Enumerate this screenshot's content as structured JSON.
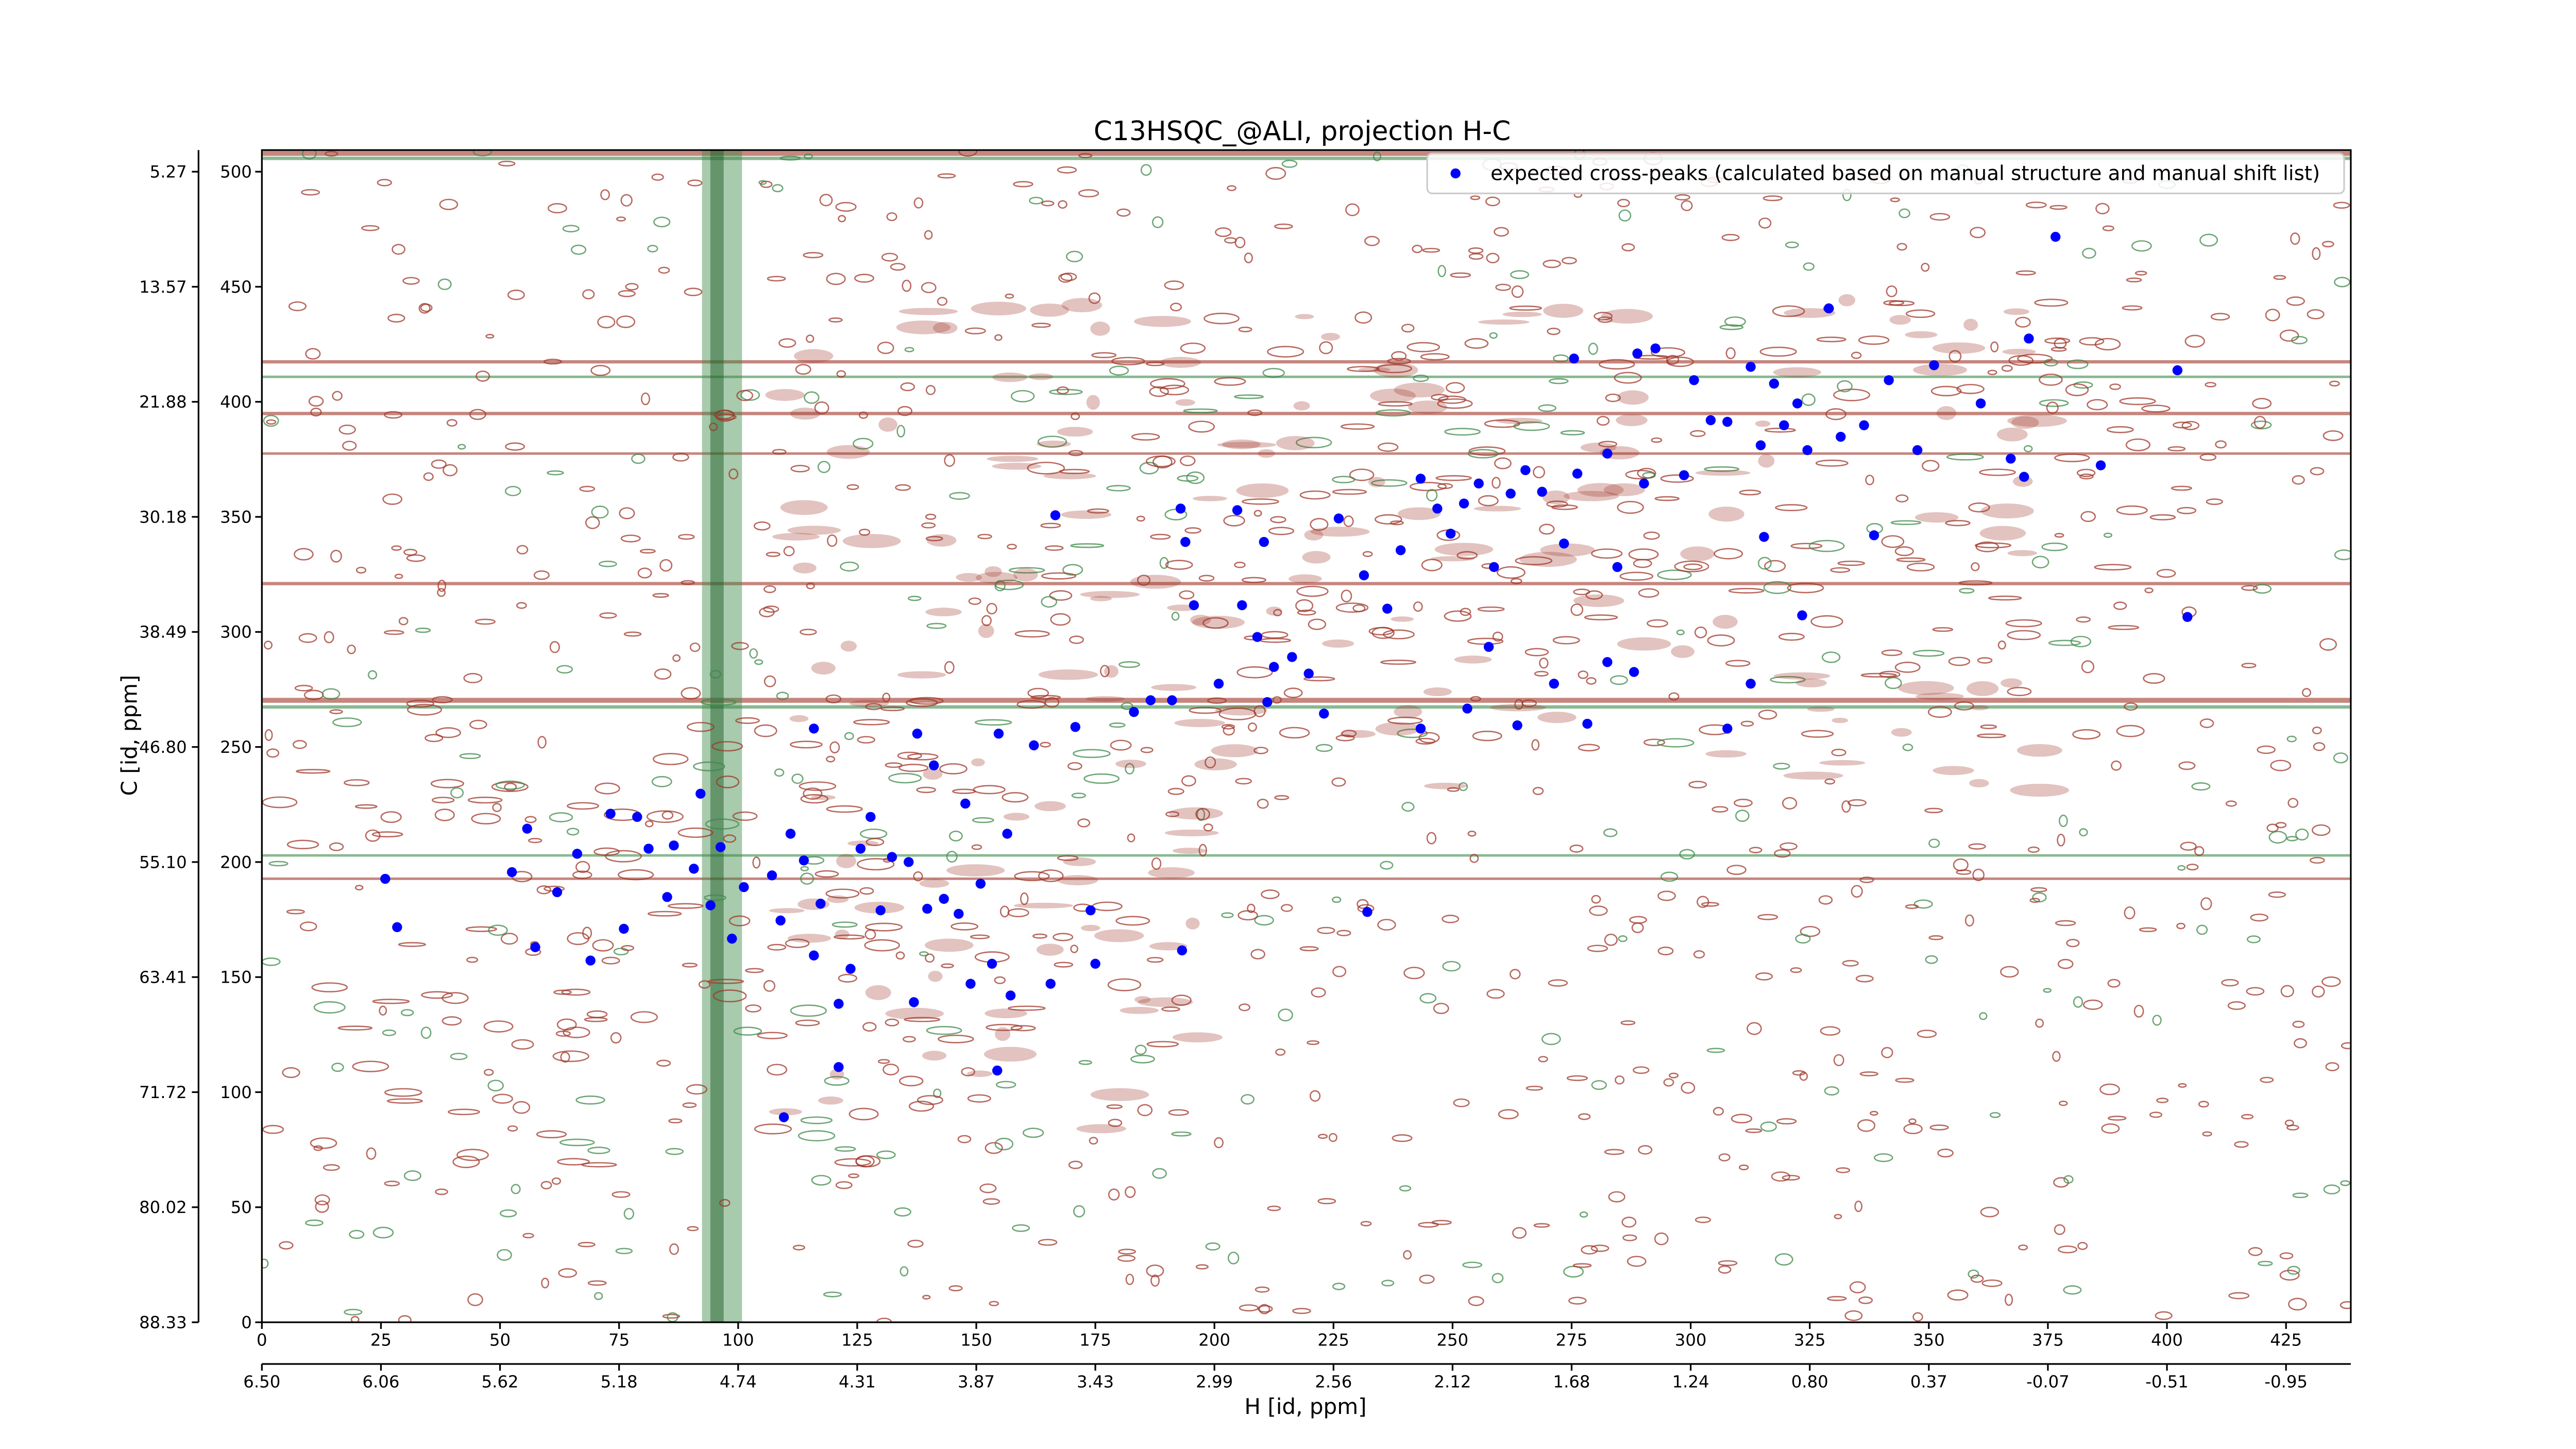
{
  "chart_data": {
    "type": "scatter",
    "title": "C13HSQC_@ALI, projection H-C",
    "x_label": "H [id, ppm]",
    "y_label": "C [id, ppm]",
    "xlim": [
      0,
      438.6
    ],
    "ylim": [
      0,
      509.4
    ],
    "xticks": [
      0,
      25,
      50,
      75,
      100,
      125,
      150,
      175,
      200,
      225,
      250,
      275,
      300,
      325,
      350,
      375,
      400,
      425
    ],
    "yticks": [
      0,
      50,
      100,
      150,
      200,
      250,
      300,
      350,
      400,
      450,
      500
    ],
    "x2lim": [
      0,
      438.6
    ],
    "x2ticks": [
      {
        "value": 0,
        "label": "6.50"
      },
      {
        "value": 25,
        "label": "6.06"
      },
      {
        "value": 50,
        "label": "5.62"
      },
      {
        "value": 75,
        "label": "5.18"
      },
      {
        "value": 100,
        "label": "4.74"
      },
      {
        "value": 125,
        "label": "4.31"
      },
      {
        "value": 150,
        "label": "3.87"
      },
      {
        "value": 175,
        "label": "3.43"
      },
      {
        "value": 200,
        "label": "2.99"
      },
      {
        "value": 225,
        "label": "2.56"
      },
      {
        "value": 250,
        "label": "2.12"
      },
      {
        "value": 275,
        "label": "1.68"
      },
      {
        "value": 300,
        "label": "1.24"
      },
      {
        "value": 325,
        "label": "0.80"
      },
      {
        "value": 350,
        "label": "0.37"
      },
      {
        "value": 375,
        "label": "-0.07"
      },
      {
        "value": 400,
        "label": "-0.51"
      },
      {
        "value": 425,
        "label": "-0.95"
      }
    ],
    "y2lim": [
      0,
      509.4
    ],
    "y2ticks": [
      {
        "value": 500,
        "label": "5.27"
      },
      {
        "value": 450,
        "label": "13.57"
      },
      {
        "value": 400,
        "label": "21.88"
      },
      {
        "value": 350,
        "label": "30.18"
      },
      {
        "value": 300,
        "label": "38.49"
      },
      {
        "value": 250,
        "label": "46.80"
      },
      {
        "value": 200,
        "label": "55.10"
      },
      {
        "value": 150,
        "label": "63.41"
      },
      {
        "value": 100,
        "label": "71.72"
      },
      {
        "value": 50,
        "label": "80.02"
      },
      {
        "value": 0,
        "label": "88.33"
      }
    ],
    "legend": "upper right",
    "series": [
      {
        "name": "expected cross-peaks (calculated based on manual structure and manual shift list)",
        "color": "#0000ff",
        "x": [
          25.9,
          28.4,
          52.5,
          55.7,
          57.4,
          62.0,
          66.2,
          69.0,
          73.2,
          76.0,
          78.8,
          81.2,
          85.1,
          86.5,
          90.7,
          92.1,
          94.2,
          96.3,
          98.7,
          101.2,
          107.1,
          108.9,
          111.0,
          113.8,
          115.9,
          117.3,
          121.1,
          123.6,
          125.7,
          127.8,
          129.9,
          132.3,
          135.8,
          136.9,
          137.6,
          139.7,
          141.1,
          143.2,
          146.3,
          147.7,
          148.8,
          150.9,
          153.3,
          154.7,
          156.5,
          157.2,
          162.1,
          165.6,
          170.8,
          174.0,
          175.0,
          109.6,
          121.1,
          154.4,
          115.9,
          193.2,
          232.1,
          166.6,
          183.1,
          186.6,
          191.1,
          192.9,
          193.9,
          195.7,
          200.9,
          204.8,
          205.8,
          209.0,
          210.4,
          211.1,
          212.5,
          216.3,
          219.8,
          223.0,
          226.1,
          231.4,
          236.3,
          239.1,
          243.3,
          246.8,
          249.6,
          252.4,
          255.5,
          258.7,
          262.2,
          265.3,
          268.8,
          273.4,
          276.2,
          282.5,
          284.6,
          290.2,
          243.3,
          253.1,
          263.6,
          271.3,
          278.3,
          282.5,
          288.1,
          307.7,
          312.6,
          257.6,
          323.4,
          338.5,
          404.3,
          275.5,
          288.8,
          292.6,
          300.7,
          304.2,
          307.7,
          312.6,
          314.7,
          317.5,
          319.6,
          322.4,
          324.5,
          329.0,
          331.5,
          336.4,
          341.6,
          347.6,
          351.1,
          360.9,
          367.2,
          370.0,
          371.0,
          376.6,
          386.1,
          402.2,
          315.4,
          298.6
        ],
        "y": [
          192.7,
          171.7,
          195.6,
          214.5,
          163.0,
          186.9,
          203.6,
          157.2,
          221.0,
          171.0,
          219.6,
          205.8,
          184.8,
          207.2,
          197.1,
          229.7,
          181.2,
          206.5,
          166.7,
          189.1,
          194.2,
          174.6,
          212.3,
          200.7,
          159.4,
          181.9,
          138.4,
          153.6,
          205.8,
          219.6,
          179.0,
          202.2,
          200.0,
          139.1,
          255.8,
          179.7,
          242.0,
          184.0,
          177.5,
          225.4,
          147.1,
          190.6,
          155.8,
          255.8,
          212.3,
          142.0,
          250.7,
          147.1,
          258.7,
          179.0,
          155.8,
          89.1,
          110.9,
          109.4,
          258.0,
          161.6,
          178.3,
          350.7,
          265.2,
          270.3,
          270.3,
          353.6,
          339.1,
          311.6,
          277.5,
          352.9,
          311.6,
          297.8,
          339.1,
          269.5,
          284.8,
          289.1,
          281.9,
          264.5,
          349.3,
          324.6,
          310.1,
          335.5,
          366.6,
          353.6,
          342.7,
          355.8,
          364.5,
          328.2,
          360.1,
          370.3,
          360.9,
          338.4,
          368.8,
          377.5,
          328.2,
          364.5,
          258.0,
          266.7,
          259.4,
          277.5,
          260.1,
          286.9,
          282.6,
          258.0,
          277.5,
          293.5,
          307.2,
          342.0,
          306.5,
          418.8,
          421.0,
          423.2,
          409.4,
          392.0,
          391.3,
          415.2,
          381.1,
          407.9,
          389.8,
          399.3,
          379.0,
          440.6,
          384.8,
          389.8,
          409.4,
          379.0,
          415.9,
          399.3,
          375.3,
          367.4,
          427.5,
          471.7,
          372.4,
          413.7,
          341.3,
          368.1
        ]
      }
    ]
  }
}
